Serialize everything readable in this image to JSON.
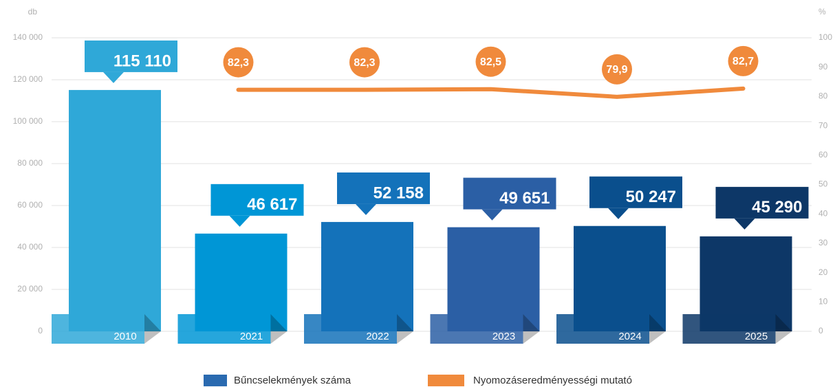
{
  "chart_data": {
    "type": "bar",
    "y_label": "db",
    "y2_label": "%",
    "categories": [
      "2010",
      "2021",
      "2022",
      "2023",
      "2024",
      "2025"
    ],
    "series": [
      {
        "name": "Bűncselekmények száma",
        "type": "bar",
        "color": "#2a6ab0",
        "colors": [
          "#2fa8d8",
          "#0096d6",
          "#1472ba",
          "#2b5fa5",
          "#0a4f8d",
          "#0d3767"
        ],
        "values": [
          115110,
          46617,
          52158,
          49651,
          50247,
          45290
        ],
        "value_labels": [
          "115 110",
          "46 617",
          "52 158",
          "49 651",
          "50 247",
          "45 290"
        ]
      },
      {
        "name": "Nyomozáseredményességi mutató",
        "type": "line",
        "axis": "y2",
        "color": "#f08a3c",
        "values": [
          null,
          82.3,
          82.3,
          82.5,
          79.9,
          82.7
        ],
        "value_labels": [
          null,
          "82,3",
          "82,3",
          "82,5",
          "79,9",
          "82,7"
        ]
      }
    ],
    "ylim": [
      0,
      140000
    ],
    "yticks": [
      0,
      {
        "value": 20000,
        "label": "20 000"
      },
      {
        "value": 40000,
        "label": "40 000"
      },
      {
        "value": 60000,
        "label": "60 000"
      },
      {
        "value": 80000,
        "label": "80 000"
      },
      {
        "value": 100000,
        "label": "100 000"
      },
      {
        "value": 120000,
        "label": "120 000"
      },
      {
        "value": 140000,
        "label": "140 000"
      }
    ],
    "y2lim": [
      0,
      100
    ],
    "y2ticks": [
      0,
      10,
      20,
      30,
      40,
      50,
      60,
      70,
      80,
      90,
      100
    ],
    "grid": true
  }
}
